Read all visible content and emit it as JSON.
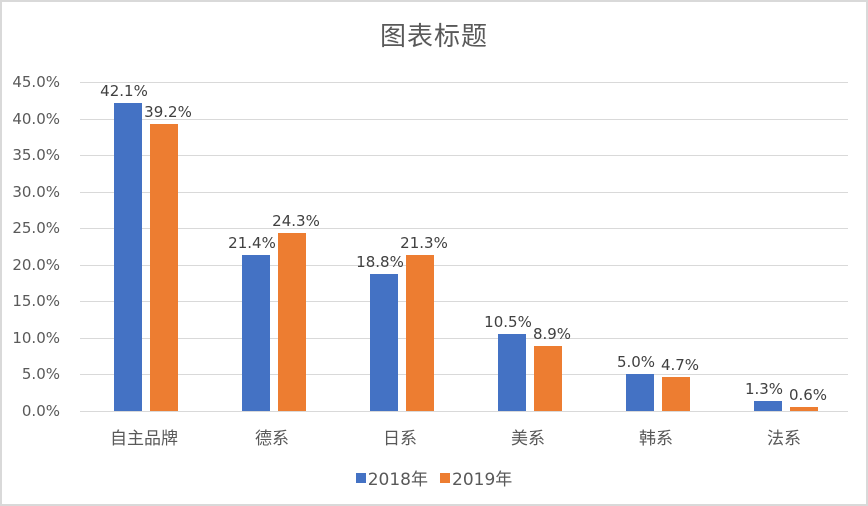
{
  "chart_data": {
    "type": "bar",
    "title": "图表标题",
    "xlabel": "",
    "ylabel": "",
    "categories": [
      "自主品牌",
      "德系",
      "日系",
      "美系",
      "韩系",
      "法系"
    ],
    "series": [
      {
        "name": "2018年",
        "color": "#4472c4",
        "values": [
          42.1,
          21.4,
          18.8,
          10.5,
          5.0,
          1.3
        ],
        "labels": [
          "42.1%",
          "21.4%",
          "18.8%",
          "10.5%",
          "5.0%",
          "1.3%"
        ]
      },
      {
        "name": "2019年",
        "color": "#ed7d31",
        "values": [
          39.2,
          24.3,
          21.3,
          8.9,
          4.7,
          0.6
        ],
        "labels": [
          "39.2%",
          "24.3%",
          "21.3%",
          "8.9%",
          "4.7%",
          "0.6%"
        ]
      }
    ],
    "ylim": [
      0,
      45
    ],
    "yticks": [
      "0.0%",
      "5.0%",
      "10.0%",
      "15.0%",
      "20.0%",
      "25.0%",
      "30.0%",
      "35.0%",
      "40.0%",
      "45.0%"
    ],
    "grid": true,
    "legend_position": "bottom",
    "data_labels": true
  }
}
